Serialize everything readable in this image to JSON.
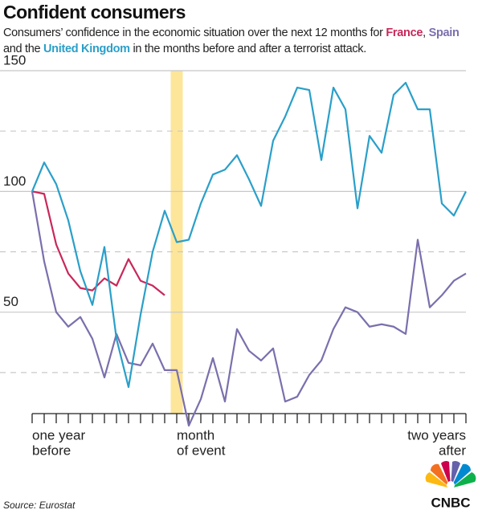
{
  "chart_data": {
    "type": "line",
    "title": "Confident consumers",
    "subtitle_parts": [
      "Consumers’ confidence in the economic situation over the next 12 months for ",
      ", ",
      " and the ",
      " in the months before and after a terrorist attack."
    ],
    "x": [
      -12,
      -11,
      -10,
      -9,
      -8,
      -7,
      -6,
      -5,
      -4,
      -3,
      -2,
      -1,
      0,
      1,
      2,
      3,
      4,
      5,
      6,
      7,
      8,
      9,
      10,
      11,
      12,
      13,
      14,
      15,
      16,
      17,
      18,
      19,
      20,
      21,
      22,
      23,
      24
    ],
    "series": [
      {
        "name": "France",
        "color": "#c8285a",
        "values": [
          100,
          99,
          78,
          66,
          60,
          59,
          64,
          61,
          72,
          63,
          61,
          57,
          null,
          null,
          null,
          null,
          null,
          null,
          null,
          null,
          null,
          null,
          null,
          null,
          null,
          null,
          null,
          null,
          null,
          null,
          null,
          null,
          null,
          null,
          null,
          null,
          null
        ]
      },
      {
        "name": "Spain",
        "color": "#7b6fad",
        "values": [
          100,
          71,
          50,
          44,
          48,
          39,
          23,
          41,
          29,
          28,
          37,
          26,
          26,
          3,
          14,
          31,
          13,
          43,
          34,
          30,
          35,
          13,
          15,
          24,
          30,
          43,
          52,
          50,
          44,
          45,
          44,
          41,
          80,
          52,
          57,
          63,
          66
        ]
      },
      {
        "name": "United Kingdom",
        "color": "#2a9fc9",
        "values": [
          100,
          112,
          103,
          88,
          67,
          53,
          77,
          39,
          19,
          49,
          75,
          92,
          79,
          80,
          95,
          107,
          109,
          115,
          105,
          94,
          121,
          131,
          143,
          142,
          113,
          143,
          134,
          93,
          123,
          116,
          140,
          145,
          134,
          134,
          95,
          90,
          100
        ]
      }
    ],
    "xlim": [
      -12,
      24
    ],
    "xticks": [
      {
        "value": -12,
        "label": [
          "one year",
          "before"
        ]
      },
      {
        "value": 0,
        "label": [
          "month",
          "of event"
        ]
      },
      {
        "value": 24,
        "label": [
          "two years",
          "after"
        ]
      }
    ],
    "ylim": [
      8,
      150
    ],
    "yticks": [
      150,
      100,
      50
    ],
    "minor_yticks": [
      125,
      75,
      25
    ],
    "grid": true,
    "highlight": {
      "x": 0,
      "color": "#fde69a"
    },
    "source": "Source: Eurostat",
    "logo": "CNBC"
  }
}
